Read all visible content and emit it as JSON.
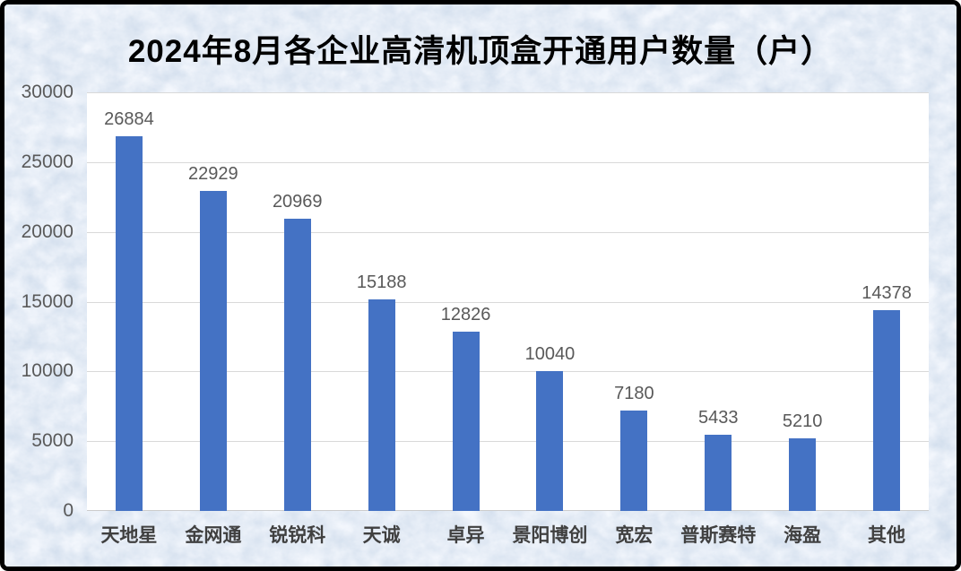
{
  "chart_data": {
    "type": "bar",
    "title": "2024年8月各企业高清机顶盒开通用户数量（户）",
    "categories": [
      "天地星",
      "金网通",
      "锐锐科",
      "天诚",
      "卓异",
      "景阳博创",
      "宽宏",
      "普斯赛特",
      "海盈",
      "其他"
    ],
    "values": [
      26884,
      22929,
      20969,
      15188,
      12826,
      10040,
      7180,
      5433,
      5210,
      14378
    ],
    "xlabel": "",
    "ylabel": "",
    "ylim": [
      0,
      30000
    ],
    "ytick_step": 5000,
    "grid": true,
    "legend": "none",
    "data_labels_shown": true
  },
  "colors": {
    "bar": "#4472C4",
    "plot_background": "#FFFFFF",
    "gridline": "#D9D9D9",
    "axis_line": "#CCCCCC",
    "y_tick_text": "#595959",
    "x_tick_text": "#404040",
    "data_label_text": "#595959",
    "title_text": "#000000",
    "page_background": "#C6D5E7",
    "frame_border": "#000000"
  }
}
